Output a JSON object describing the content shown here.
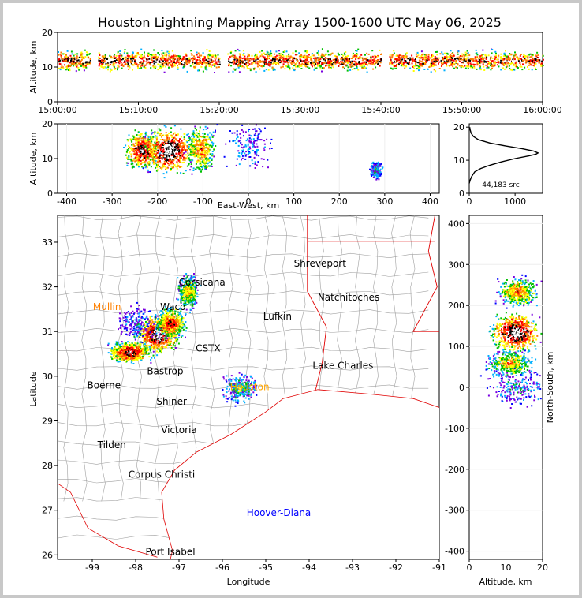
{
  "title": "Houston Lightning Mapping Array 1500-1600 UTC May 06, 2025",
  "colors": {
    "density_scale": [
      "#0000ff",
      "#7a00e0",
      "#00b0ff",
      "#00c000",
      "#ffff00",
      "#ff8000",
      "#ff0000",
      "#000000",
      "#ffffff"
    ],
    "state_border": "#e00000",
    "county_border": "#a0a0a0",
    "coast": "#e00000"
  },
  "chart_data": [
    {
      "id": "time-height",
      "type": "heatmap",
      "title": "",
      "xlabel": "",
      "ylabel": "Altitude, km",
      "x_ticks": [
        "15:00:00",
        "15:10:00",
        "15:20:00",
        "15:30:00",
        "15:40:00",
        "15:50:00",
        "16:00:00"
      ],
      "x_range": [
        "15:00:00",
        "16:00:00"
      ],
      "y_ticks": [
        0,
        10,
        20
      ],
      "ylim": [
        0,
        20
      ],
      "activity_band_km": [
        6,
        18
      ],
      "peak_altitude_km": 12,
      "data_gaps": [
        [
          "15:04:00",
          "15:05:00"
        ],
        [
          "15:20:00",
          "15:21:00"
        ],
        [
          "15:40:00",
          "15:41:00"
        ]
      ]
    },
    {
      "id": "east-west-altitude",
      "type": "heatmap",
      "xlabel": "East-West, km",
      "ylabel": "Altitude, km",
      "x_ticks": [
        -400,
        -300,
        -200,
        -100,
        0,
        100,
        200,
        300,
        400
      ],
      "xlim": [
        -420,
        420
      ],
      "y_ticks": [
        0,
        10,
        20
      ],
      "ylim": [
        0,
        20
      ],
      "cells": [
        {
          "x": -235,
          "alt": 12.5,
          "intensity": 0.9,
          "spread_x": 28,
          "spread_alt": 4
        },
        {
          "x": -175,
          "alt": 12.5,
          "intensity": 1.0,
          "spread_x": 40,
          "spread_alt": 5
        },
        {
          "x": -105,
          "alt": 13,
          "intensity": 0.7,
          "spread_x": 25,
          "spread_alt": 5
        },
        {
          "x": 0,
          "alt": 14,
          "intensity": 0.25,
          "spread_x": 45,
          "spread_alt": 5
        },
        {
          "x": 280,
          "alt": 7,
          "intensity": 0.35,
          "spread_x": 10,
          "spread_alt": 2
        }
      ]
    },
    {
      "id": "altitude-histogram",
      "type": "line",
      "xlabel": "",
      "ylabel": "",
      "x_ticks": [
        0,
        1000
      ],
      "xlim": [
        0,
        1600
      ],
      "y_ticks": [
        0,
        10,
        20
      ],
      "ylim": [
        0,
        21
      ],
      "annotation": "44,183 src",
      "x": [
        0,
        20,
        50,
        120,
        250,
        450,
        700,
        1000,
        1300,
        1450,
        1500,
        1400,
        1150,
        800,
        450,
        200,
        90,
        40,
        20,
        10
      ],
      "y": [
        3,
        4,
        5,
        6.5,
        7.5,
        8.5,
        9.5,
        10.5,
        11.3,
        11.8,
        12.2,
        12.8,
        13.5,
        14.3,
        15.2,
        16.2,
        17.2,
        18.2,
        19.2,
        20
      ]
    },
    {
      "id": "plan-view-map",
      "type": "scatter",
      "xlabel": "Longitude",
      "ylabel": "Latitude",
      "x_ticks": [
        -99,
        -98,
        -97,
        -96,
        -95,
        -94,
        -93,
        -92,
        -91
      ],
      "xlim": [
        -99.8,
        -91
      ],
      "y_ticks": [
        26,
        27,
        28,
        29,
        30,
        31,
        32,
        33
      ],
      "ylim": [
        25.9,
        33.6
      ],
      "cities": [
        {
          "name": "Shreveport",
          "lon": -93.75,
          "lat": 32.52,
          "color": "#000000"
        },
        {
          "name": "Natchitoches",
          "lon": -93.09,
          "lat": 31.76,
          "color": "#000000"
        },
        {
          "name": "Lufkin",
          "lon": -94.73,
          "lat": 31.34,
          "color": "#000000"
        },
        {
          "name": "Lake Charles",
          "lon": -93.22,
          "lat": 30.24,
          "color": "#000000"
        },
        {
          "name": "Mullin",
          "lon": -98.66,
          "lat": 31.55,
          "color": "#ff8000"
        },
        {
          "name": "Waco",
          "lon": -97.14,
          "lat": 31.55,
          "color": "#000000"
        },
        {
          "name": "Corsicana",
          "lon": -96.47,
          "lat": 32.1,
          "color": "#000000"
        },
        {
          "name": "CSTX",
          "lon": -96.33,
          "lat": 30.62,
          "color": "#000000"
        },
        {
          "name": "Bastrop",
          "lon": -97.32,
          "lat": 30.11,
          "color": "#000000"
        },
        {
          "name": "Boerne",
          "lon": -98.73,
          "lat": 29.79,
          "color": "#000000"
        },
        {
          "name": "Shiner",
          "lon": -97.17,
          "lat": 29.43,
          "color": "#000000"
        },
        {
          "name": "Houston",
          "lon": -95.37,
          "lat": 29.76,
          "color": "#ffa500"
        },
        {
          "name": "Victoria",
          "lon": -97.0,
          "lat": 28.8,
          "color": "#000000"
        },
        {
          "name": "Tilden",
          "lon": -98.55,
          "lat": 28.46,
          "color": "#000000"
        },
        {
          "name": "Corpus Christi",
          "lon": -97.4,
          "lat": 27.8,
          "color": "#000000"
        },
        {
          "name": "Hoover-Diana",
          "lon": -94.7,
          "lat": 26.94,
          "color": "#0000ff"
        },
        {
          "name": "Port Isabel",
          "lon": -97.2,
          "lat": 26.07,
          "color": "#000000"
        }
      ],
      "cells": [
        {
          "lon": -97.5,
          "lat": 30.95,
          "intensity": 1.0,
          "spread_lon": 0.35,
          "spread_lat": 0.3
        },
        {
          "lon": -97.2,
          "lat": 31.2,
          "intensity": 0.8,
          "spread_lon": 0.25,
          "spread_lat": 0.25
        },
        {
          "lon": -98.15,
          "lat": 30.55,
          "intensity": 0.9,
          "spread_lon": 0.35,
          "spread_lat": 0.18
        },
        {
          "lon": -96.8,
          "lat": 31.9,
          "intensity": 0.6,
          "spread_lon": 0.18,
          "spread_lat": 0.28
        },
        {
          "lon": -95.6,
          "lat": 29.75,
          "intensity": 0.4,
          "spread_lon": 0.3,
          "spread_lat": 0.25
        },
        {
          "lon": -98.0,
          "lat": 31.2,
          "intensity": 0.25,
          "spread_lon": 0.3,
          "spread_lat": 0.3
        }
      ]
    },
    {
      "id": "altitude-north-south",
      "type": "heatmap",
      "xlabel": "Altitude, km",
      "ylabel": "North-South, km",
      "x_ticks": [
        0,
        10,
        20
      ],
      "xlim": [
        0,
        20
      ],
      "y_ticks": [
        -400,
        -300,
        -200,
        -100,
        0,
        100,
        200,
        300,
        400
      ],
      "ylim": [
        -420,
        420
      ],
      "cells": [
        {
          "alt": 12.5,
          "y": 135,
          "intensity": 1.0,
          "spread_alt": 5,
          "spread_y": 35
        },
        {
          "alt": 13,
          "y": 235,
          "intensity": 0.7,
          "spread_alt": 4,
          "spread_y": 25
        },
        {
          "alt": 11,
          "y": 60,
          "intensity": 0.6,
          "spread_alt": 5,
          "spread_y": 25
        },
        {
          "alt": 13,
          "y": 0,
          "intensity": 0.3,
          "spread_alt": 6,
          "spread_y": 35
        }
      ]
    }
  ]
}
